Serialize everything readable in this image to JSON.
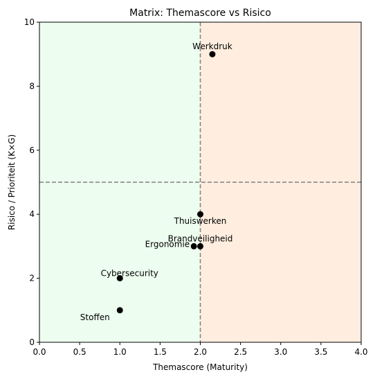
{
  "chart_data": {
    "type": "scatter",
    "title": "Matrix: Themascore vs Risico",
    "xlabel": "Themascore (Maturity)",
    "ylabel": "Risico / Prioriteit (K×G)",
    "xlim": [
      0,
      4
    ],
    "ylim": [
      0,
      10
    ],
    "x_ticks": [
      "0.0",
      "0.5",
      "1.0",
      "1.5",
      "2.0",
      "2.5",
      "3.0",
      "3.5",
      "4.0"
    ],
    "y_ticks": [
      "0",
      "2",
      "4",
      "6",
      "8",
      "10"
    ],
    "grid": false,
    "threshold_x": 2,
    "threshold_y": 5,
    "region_colors": {
      "left": "#edfdef",
      "right": "#ffeedf",
      "threshold_line": "#808080",
      "marker": "#000000"
    },
    "points": [
      {
        "label": "Werkdruk",
        "x": 2.15,
        "y": 9.0,
        "label_pos": "above"
      },
      {
        "label": "Thuiswerken",
        "x": 2.0,
        "y": 4.0,
        "label_pos": "below"
      },
      {
        "label": "Brandveiligheid",
        "x": 2.0,
        "y": 3.0,
        "label_pos": "above"
      },
      {
        "label": "Ergonomie",
        "x": 1.92,
        "y": 3.0,
        "label_pos": "left"
      },
      {
        "label": "Cybersecurity",
        "x": 1.0,
        "y": 2.0,
        "label_pos": "above-center"
      },
      {
        "label": "Stoffen",
        "x": 1.0,
        "y": 1.0,
        "label_pos": "below-left"
      }
    ]
  }
}
